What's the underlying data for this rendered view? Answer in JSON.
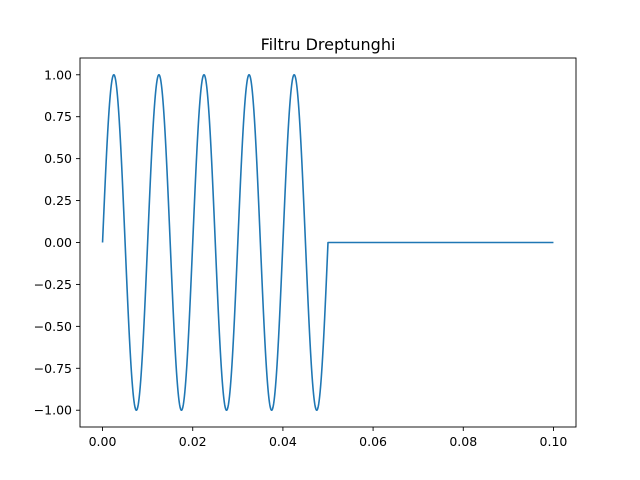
{
  "chart_data": {
    "type": "line",
    "title": "Filtru Dreptunghi",
    "xlabel": "",
    "ylabel": "",
    "xlim": [
      -0.005,
      0.105
    ],
    "ylim": [
      -1.1,
      1.1
    ],
    "x_ticks": [
      0.0,
      0.02,
      0.04,
      0.06,
      0.08,
      0.1
    ],
    "x_tick_labels": [
      "0.00",
      "0.02",
      "0.04",
      "0.06",
      "0.08",
      "0.10"
    ],
    "y_ticks": [
      -1.0,
      -0.75,
      -0.5,
      -0.25,
      0.0,
      0.25,
      0.5,
      0.75,
      1.0
    ],
    "y_tick_labels": [
      "−1.00",
      "−0.75",
      "−0.50",
      "−0.25",
      "0.00",
      "0.25",
      "0.50",
      "0.75",
      "1.00"
    ],
    "grid": false,
    "legend": "none",
    "series": [
      {
        "color": "#1f77b4",
        "function": "sin(2*pi*100*x) for 0 <= x <= 0.05, 0 for 0.05 < x <= 0.1",
        "x_start": 0.0,
        "x_end": 0.1,
        "frequency_hz": 100,
        "amplitude": 1.0,
        "window_end": 0.05
      }
    ]
  }
}
